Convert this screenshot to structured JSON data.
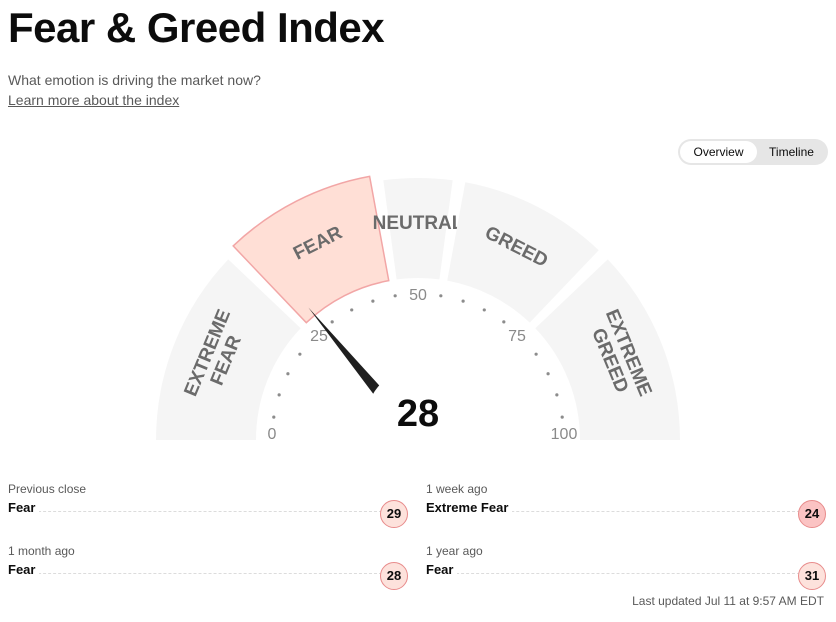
{
  "page": {
    "title": "Fear & Greed Index",
    "subtitle": "What emotion is driving the market now?",
    "learn_more": "Learn more about the index"
  },
  "view_toggle": {
    "options": [
      "Overview",
      "Timeline"
    ],
    "selected": "Overview"
  },
  "gauge": {
    "value": 28,
    "scale_min": 0,
    "scale_max": 100,
    "tick_labels": [
      "0",
      "25",
      "50",
      "75",
      "100"
    ],
    "segments": [
      {
        "label_lines": [
          "EXTREME",
          "FEAR"
        ],
        "from": 0,
        "to": 25
      },
      {
        "label_lines": [
          "FEAR"
        ],
        "from": 25,
        "to": 45
      },
      {
        "label_lines": [
          "NEUTRAL"
        ],
        "from": 45,
        "to": 55
      },
      {
        "label_lines": [
          "GREED"
        ],
        "from": 55,
        "to": 75
      },
      {
        "label_lines": [
          "EXTREME",
          "GREED"
        ],
        "from": 75,
        "to": 100
      }
    ],
    "active_segment": "FEAR",
    "colors": {
      "segment": "#f5f5f5",
      "active_fill": "#ffdfd6",
      "active_border": "#f2a6a6",
      "label": "#6b6b6b",
      "needle": "#1f1f1f"
    }
  },
  "history": [
    {
      "label": "Previous close",
      "value_text": "Fear",
      "score": "29",
      "level": "fear"
    },
    {
      "label": "1 week ago",
      "value_text": "Extreme Fear",
      "score": "24",
      "level": "extreme"
    },
    {
      "label": "1 month ago",
      "value_text": "Fear",
      "score": "28",
      "level": "fear"
    },
    {
      "label": "1 year ago",
      "value_text": "Fear",
      "score": "31",
      "level": "fear"
    }
  ],
  "last_updated": "Last updated Jul 11 at 9:57 AM EDT"
}
